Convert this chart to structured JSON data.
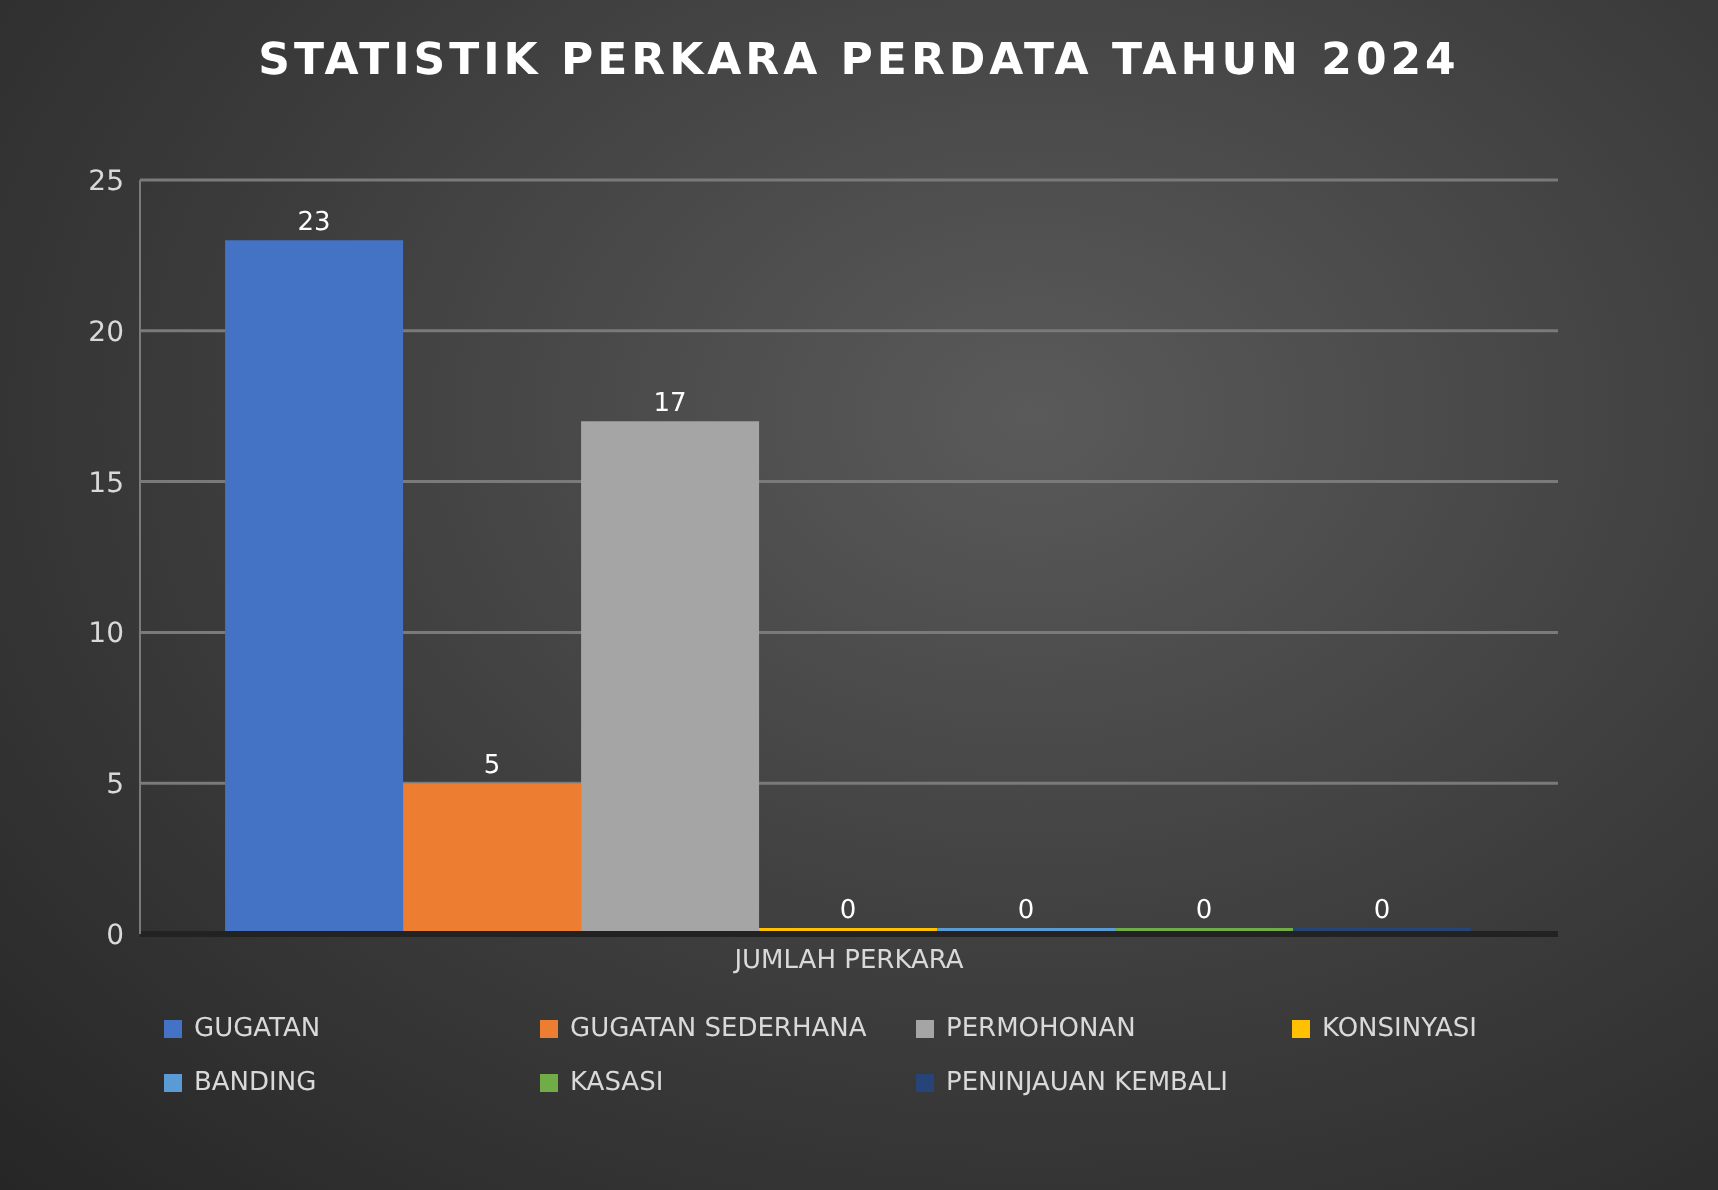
{
  "chart_data": {
    "type": "bar",
    "title": "STATISTIK PERKARA PERDATA TAHUN 2024",
    "categories": [
      "JUMLAH PERKARA"
    ],
    "series": [
      {
        "name": "GUGATAN",
        "color": "#4472c4",
        "values": [
          23
        ]
      },
      {
        "name": "GUGATAN SEDERHANA",
        "color": "#ed7d31",
        "values": [
          5
        ]
      },
      {
        "name": "PERMOHONAN",
        "color": "#a5a5a5",
        "values": [
          17
        ]
      },
      {
        "name": "KONSINYASI",
        "color": "#ffc000",
        "values": [
          0
        ]
      },
      {
        "name": "BANDING",
        "color": "#5b9bd5",
        "values": [
          0
        ]
      },
      {
        "name": "KASASI",
        "color": "#70ad47",
        "values": [
          0
        ]
      },
      {
        "name": "PENINJAUAN KEMBALI",
        "color": "#264478",
        "values": [
          0
        ]
      }
    ],
    "ylim": [
      0,
      25
    ],
    "yticks": [
      0,
      5,
      10,
      15,
      20,
      25
    ],
    "grid": "y",
    "legend": "bottom",
    "data_labels": true
  }
}
